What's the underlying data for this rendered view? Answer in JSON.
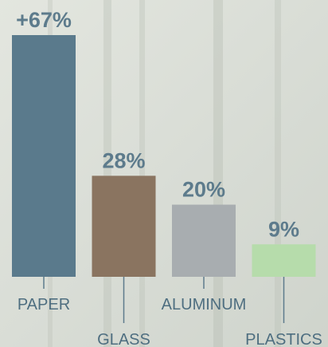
{
  "chart_data": {
    "type": "bar",
    "categories": [
      "PAPER",
      "GLASS",
      "ALUMINUM",
      "PLASTICS"
    ],
    "values": [
      67,
      28,
      20,
      9
    ],
    "value_labels": [
      "+67%",
      "28%",
      "20%",
      "9%"
    ],
    "colors": [
      "#5a7a8c",
      "#8a7460",
      "#a8adb0",
      "#b6dcab"
    ]
  }
}
